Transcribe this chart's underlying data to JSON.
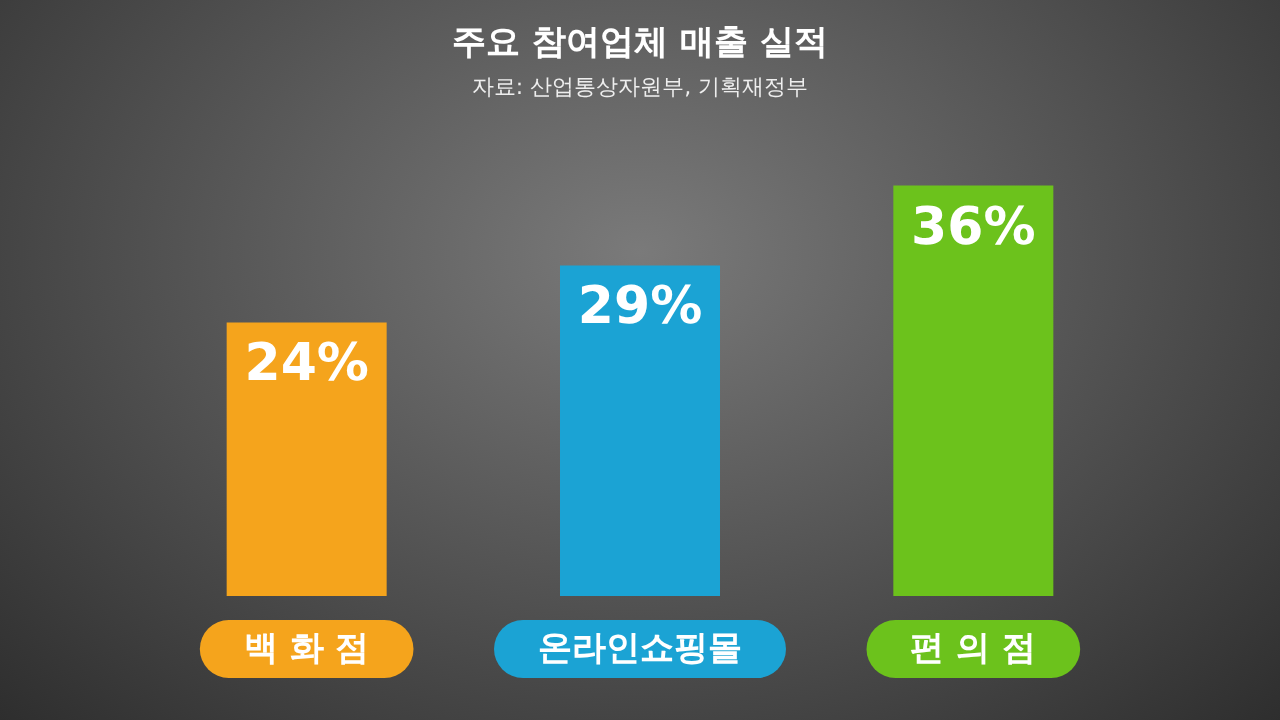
{
  "chart_data": {
    "type": "bar",
    "title": "주요 참여업체 매출 실적",
    "subtitle": "자료: 산업통상자원부, 기획재정부",
    "categories": [
      "백 화 점",
      "온라인쇼핑몰",
      "편 의 점"
    ],
    "values": [
      24,
      29,
      36
    ],
    "colors": [
      "#f5a41c",
      "#1ba3d4",
      "#6cc21c"
    ],
    "value_labels": [
      "24%",
      "29%",
      "36%"
    ]
  }
}
